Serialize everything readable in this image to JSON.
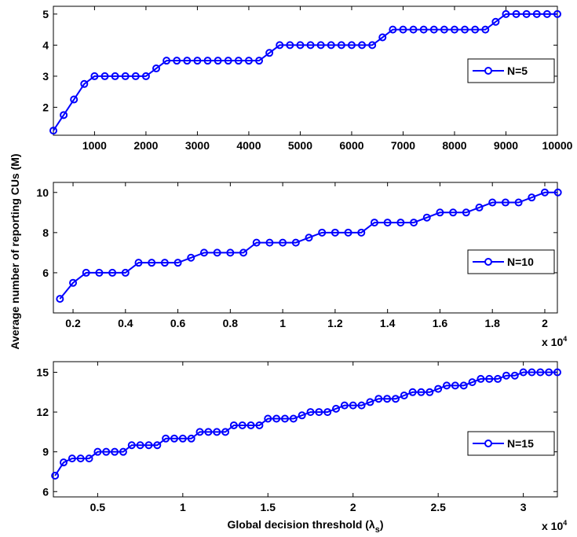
{
  "chart_data": [
    {
      "type": "line",
      "x": [
        200,
        400,
        600,
        800,
        1000,
        1200,
        1400,
        1600,
        1800,
        2000,
        2200,
        2400,
        2600,
        2800,
        3000,
        3200,
        3400,
        3600,
        3800,
        4000,
        4200,
        4400,
        4600,
        4800,
        5000,
        5200,
        5400,
        5600,
        5800,
        6000,
        6200,
        6400,
        6600,
        6800,
        7000,
        7200,
        7400,
        7600,
        7800,
        8000,
        8200,
        8400,
        8600,
        8800,
        9000,
        9200,
        9400,
        9600,
        9800,
        10000
      ],
      "series": [
        {
          "name": "N=5",
          "color": "#0000ff",
          "values": [
            1.25,
            1.75,
            2.25,
            2.75,
            3,
            3,
            3,
            3,
            3,
            3,
            3.25,
            3.5,
            3.5,
            3.5,
            3.5,
            3.5,
            3.5,
            3.5,
            3.5,
            3.5,
            3.5,
            3.75,
            4,
            4,
            4,
            4,
            4,
            4,
            4,
            4,
            4,
            4,
            4.25,
            4.5,
            4.5,
            4.5,
            4.5,
            4.5,
            4.5,
            4.5,
            4.5,
            4.5,
            4.5,
            4.75,
            5,
            5,
            5,
            5,
            5,
            5
          ]
        }
      ],
      "xlim": [
        200,
        10000
      ],
      "xticks": [
        1000,
        2000,
        3000,
        4000,
        5000,
        6000,
        7000,
        8000,
        9000,
        10000
      ],
      "ylim": [
        1.1,
        5.25
      ],
      "yticks": [
        2,
        3,
        4,
        5
      ],
      "legend": "right"
    },
    {
      "type": "line",
      "x": [
        0.15,
        0.2,
        0.25,
        0.3,
        0.35,
        0.4,
        0.45,
        0.5,
        0.55,
        0.6,
        0.65,
        0.7,
        0.75,
        0.8,
        0.85,
        0.9,
        0.95,
        1.0,
        1.05,
        1.1,
        1.15,
        1.2,
        1.25,
        1.3,
        1.35,
        1.4,
        1.45,
        1.5,
        1.55,
        1.6,
        1.65,
        1.7,
        1.75,
        1.8,
        1.85,
        1.9,
        1.95,
        2.0,
        2.05
      ],
      "series": [
        {
          "name": "N=10",
          "color": "#0000ff",
          "values": [
            4.7,
            5.5,
            6,
            6,
            6,
            6,
            6.5,
            6.5,
            6.5,
            6.5,
            6.75,
            7,
            7,
            7,
            7,
            7.5,
            7.5,
            7.5,
            7.5,
            7.75,
            8,
            8,
            8,
            8,
            8.5,
            8.5,
            8.5,
            8.5,
            8.75,
            9,
            9,
            9,
            9.25,
            9.5,
            9.5,
            9.5,
            9.75,
            10,
            10
          ]
        }
      ],
      "xlim": [
        0.125,
        2.048
      ],
      "xticks": [
        0.2,
        0.4,
        0.6,
        0.8,
        1,
        1.2,
        1.4,
        1.6,
        1.8,
        2
      ],
      "ylim": [
        4,
        10.5
      ],
      "yticks": [
        6,
        8,
        10
      ],
      "legend": "right",
      "ylabel": "Average number of reporting CUs (M)",
      "x_multiplier": [
        "x 10",
        "4"
      ]
    },
    {
      "type": "line",
      "x": [
        0.25,
        0.3,
        0.35,
        0.4,
        0.45,
        0.5,
        0.55,
        0.6,
        0.65,
        0.7,
        0.75,
        0.8,
        0.85,
        0.9,
        0.95,
        1.0,
        1.05,
        1.1,
        1.15,
        1.2,
        1.25,
        1.3,
        1.35,
        1.4,
        1.45,
        1.5,
        1.55,
        1.6,
        1.65,
        1.7,
        1.75,
        1.8,
        1.85,
        1.9,
        1.95,
        2.0,
        2.05,
        2.1,
        2.15,
        2.2,
        2.25,
        2.3,
        2.35,
        2.4,
        2.45,
        2.5,
        2.55,
        2.6,
        2.65,
        2.7,
        2.75,
        2.8,
        2.85,
        2.9,
        2.95,
        3.0,
        3.05,
        3.1,
        3.15,
        3.2
      ],
      "series": [
        {
          "name": "N=15",
          "color": "#0000ff",
          "values": [
            7.2,
            8.2,
            8.5,
            8.5,
            8.5,
            9,
            9,
            9,
            9,
            9.5,
            9.5,
            9.5,
            9.5,
            10,
            10,
            10,
            10,
            10.5,
            10.5,
            10.5,
            10.5,
            11,
            11,
            11,
            11,
            11.5,
            11.5,
            11.5,
            11.5,
            11.75,
            12,
            12,
            12,
            12.25,
            12.5,
            12.5,
            12.5,
            12.75,
            13,
            13,
            13,
            13.25,
            13.5,
            13.5,
            13.5,
            13.75,
            14,
            14,
            14,
            14.25,
            14.5,
            14.5,
            14.5,
            14.75,
            14.75,
            15,
            15,
            15,
            15,
            15
          ]
        }
      ],
      "xlim": [
        0.24,
        3.2
      ],
      "xticks": [
        0.5,
        1,
        1.5,
        2,
        2.5,
        3
      ],
      "ylim": [
        5.6,
        15.8
      ],
      "yticks": [
        6,
        9,
        12,
        15
      ],
      "legend": "right",
      "xlabel": [
        "Global decision threshold (λ",
        "s",
        ")"
      ],
      "x_multiplier": [
        "x 10",
        "4"
      ]
    }
  ]
}
